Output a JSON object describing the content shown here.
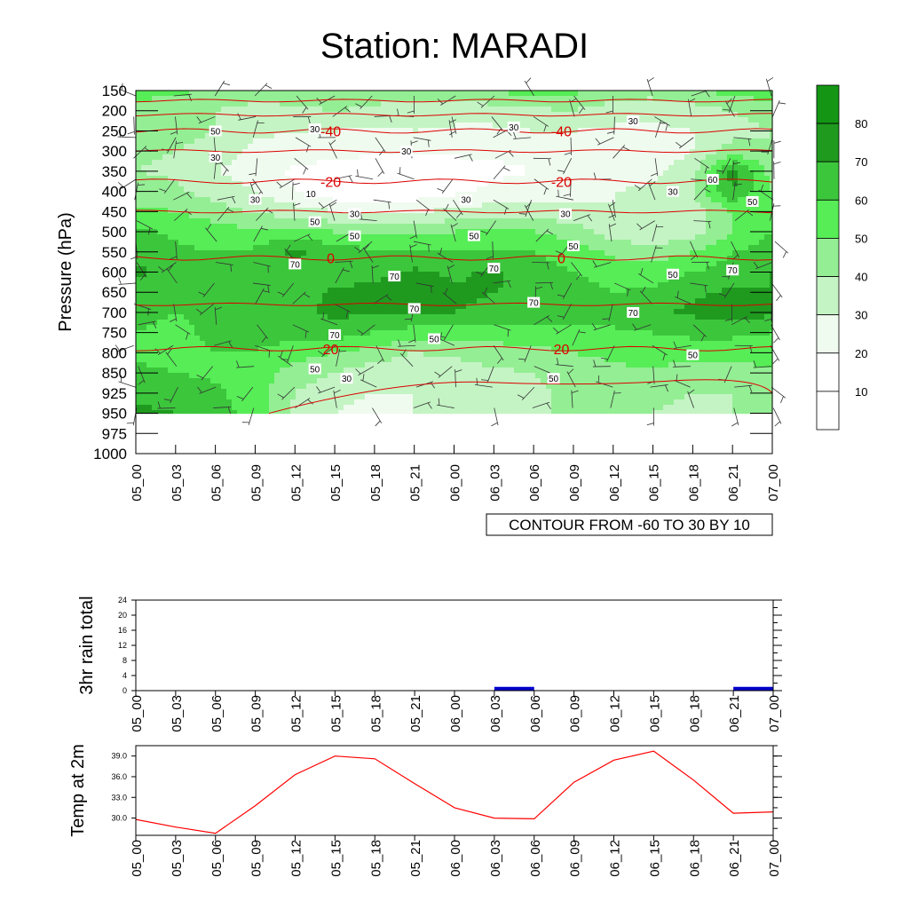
{
  "chart_data": [
    {
      "type": "heatmap",
      "title": "Station: MARADI",
      "ylabel": "Pressure (hPa)",
      "x_ticks": [
        "05_00",
        "05_03",
        "05_06",
        "05_09",
        "05_12",
        "05_15",
        "05_18",
        "05_21",
        "06_00",
        "06_03",
        "06_06",
        "06_09",
        "06_12",
        "06_15",
        "06_18",
        "06_21",
        "07_00"
      ],
      "y_ticks": [
        150,
        200,
        250,
        300,
        350,
        400,
        450,
        500,
        550,
        600,
        650,
        700,
        750,
        800,
        850,
        925,
        950,
        975,
        1000
      ],
      "contour_note": "CONTOUR FROM -60 TO 30 BY 10",
      "colorbar": {
        "levels": [
          10,
          20,
          30,
          40,
          50,
          60,
          70,
          80
        ],
        "tick_labels": [
          "10",
          "20",
          "30",
          "40",
          "50",
          "60",
          "70",
          "80"
        ],
        "colors": [
          "#ffffff",
          "#ffffff",
          "#f0fbef",
          "#c4f4c4",
          "#94ee94",
          "#56ed56",
          "#3cc63c",
          "#1f9a1f",
          "#149614"
        ]
      },
      "relative_humidity_grid": {
        "columns": [
          "05_00",
          "05_03",
          "05_06",
          "05_09",
          "05_12",
          "05_15",
          "05_18",
          "05_21",
          "06_00",
          "06_03",
          "06_06",
          "06_09",
          "06_12",
          "06_15",
          "06_18",
          "06_21",
          "07_00"
        ],
        "rows": [
          150,
          200,
          250,
          300,
          350,
          400,
          450,
          500,
          550,
          600,
          650,
          700,
          750,
          800,
          850,
          925,
          950
        ],
        "values": [
          [
            55,
            52,
            50,
            48,
            45,
            50,
            45,
            45,
            48,
            50,
            55,
            52,
            45,
            45,
            48,
            55,
            55
          ],
          [
            45,
            42,
            40,
            35,
            38,
            40,
            38,
            35,
            35,
            35,
            38,
            40,
            35,
            32,
            35,
            40,
            45
          ],
          [
            50,
            45,
            40,
            32,
            30,
            30,
            28,
            30,
            28,
            28,
            30,
            30,
            28,
            28,
            30,
            35,
            40
          ],
          [
            42,
            40,
            35,
            28,
            25,
            25,
            22,
            22,
            22,
            22,
            22,
            25,
            25,
            25,
            30,
            45,
            40
          ],
          [
            40,
            38,
            30,
            25,
            18,
            15,
            12,
            12,
            15,
            18,
            20,
            22,
            25,
            28,
            35,
            75,
            45
          ],
          [
            45,
            42,
            35,
            30,
            20,
            12,
            10,
            12,
            18,
            22,
            25,
            28,
            30,
            32,
            40,
            70,
            50
          ],
          [
            52,
            50,
            45,
            38,
            35,
            30,
            28,
            30,
            32,
            35,
            35,
            32,
            30,
            30,
            35,
            50,
            55
          ],
          [
            62,
            58,
            55,
            52,
            55,
            50,
            48,
            48,
            50,
            52,
            50,
            45,
            35,
            30,
            35,
            50,
            60
          ],
          [
            65,
            62,
            60,
            62,
            72,
            65,
            62,
            60,
            60,
            62,
            60,
            55,
            48,
            45,
            50,
            60,
            65
          ],
          [
            72,
            68,
            65,
            65,
            68,
            65,
            68,
            72,
            68,
            72,
            65,
            60,
            55,
            55,
            60,
            65,
            70
          ],
          [
            65,
            62,
            62,
            62,
            65,
            72,
            72,
            75,
            72,
            70,
            68,
            65,
            60,
            62,
            68,
            72,
            70
          ],
          [
            62,
            60,
            62,
            62,
            68,
            72,
            72,
            72,
            70,
            68,
            65,
            65,
            65,
            68,
            72,
            75,
            72
          ],
          [
            60,
            58,
            62,
            62,
            65,
            65,
            60,
            55,
            55,
            55,
            55,
            55,
            58,
            60,
            62,
            62,
            60
          ],
          [
            58,
            58,
            60,
            60,
            55,
            50,
            45,
            40,
            42,
            45,
            48,
            50,
            52,
            55,
            55,
            55,
            55
          ],
          [
            62,
            60,
            58,
            55,
            45,
            40,
            35,
            32,
            35,
            38,
            40,
            45,
            48,
            48,
            45,
            45,
            48
          ],
          [
            68,
            65,
            62,
            55,
            40,
            32,
            30,
            30,
            32,
            35,
            38,
            42,
            45,
            42,
            40,
            40,
            42
          ],
          [
            72,
            70,
            65,
            55,
            38,
            30,
            28,
            30,
            32,
            35,
            38,
            42,
            42,
            40,
            38,
            40,
            42
          ]
        ]
      },
      "temperature_contours": [
        {
          "level": -40,
          "label": "-40",
          "pressure": 250
        },
        {
          "level": -20,
          "label": "-20",
          "pressure": 375
        },
        {
          "level": 0,
          "label": "0",
          "pressure": 565
        },
        {
          "level": 20,
          "label": "20",
          "pressure": 790
        }
      ],
      "extra_contours": [
        {
          "pressure": 175,
          "label": ""
        },
        {
          "pressure": 210,
          "label": ""
        },
        {
          "pressure": 300,
          "label": ""
        },
        {
          "pressure": 450,
          "label": ""
        },
        {
          "pressure": 680,
          "label": ""
        }
      ],
      "rh_labels": [
        {
          "text": "50",
          "col": 2,
          "p": 250
        },
        {
          "text": "30",
          "col": 4.5,
          "p": 245
        },
        {
          "text": "30",
          "col": 9.5,
          "p": 240
        },
        {
          "text": "30",
          "col": 12.5,
          "p": 225
        },
        {
          "text": "30",
          "col": 2,
          "p": 315
        },
        {
          "text": "30",
          "col": 6.8,
          "p": 300
        },
        {
          "text": "10",
          "col": 4.4,
          "p": 405
        },
        {
          "text": "30",
          "col": 3,
          "p": 420
        },
        {
          "text": "30",
          "col": 8.3,
          "p": 420
        },
        {
          "text": "30",
          "col": 13.5,
          "p": 400
        },
        {
          "text": "60",
          "col": 14.5,
          "p": 370
        },
        {
          "text": "50",
          "col": 15.5,
          "p": 425
        },
        {
          "text": "50",
          "col": 4.5,
          "p": 475
        },
        {
          "text": "30",
          "col": 5.5,
          "p": 455
        },
        {
          "text": "30",
          "col": 10.8,
          "p": 455
        },
        {
          "text": "50",
          "col": 5.5,
          "p": 510
        },
        {
          "text": "50",
          "col": 8.5,
          "p": 510
        },
        {
          "text": "50",
          "col": 11,
          "p": 535
        },
        {
          "text": "70",
          "col": 4,
          "p": 580
        },
        {
          "text": "70",
          "col": 6.5,
          "p": 610
        },
        {
          "text": "70",
          "col": 9,
          "p": 590
        },
        {
          "text": "50",
          "col": 13.5,
          "p": 605
        },
        {
          "text": "70",
          "col": 15,
          "p": 595
        },
        {
          "text": "70",
          "col": 7,
          "p": 690
        },
        {
          "text": "70",
          "col": 10,
          "p": 675
        },
        {
          "text": "70",
          "col": 12.5,
          "p": 700
        },
        {
          "text": "70",
          "col": 5,
          "p": 755
        },
        {
          "text": "50",
          "col": 7.5,
          "p": 765
        },
        {
          "text": "50",
          "col": 14,
          "p": 805
        },
        {
          "text": "50",
          "col": 4.5,
          "p": 840
        },
        {
          "text": "30",
          "col": 5.3,
          "p": 870
        },
        {
          "text": "50",
          "col": 10.5,
          "p": 870
        }
      ]
    },
    {
      "type": "bar",
      "ylabel": "3hr rain total",
      "x": [
        "05_00",
        "05_03",
        "05_06",
        "05_09",
        "05_12",
        "05_15",
        "05_18",
        "05_21",
        "06_00",
        "06_03",
        "06_06",
        "06_09",
        "06_12",
        "06_15",
        "06_18",
        "06_21",
        "07_00"
      ],
      "values": [
        0,
        0,
        0,
        0,
        0,
        0,
        0,
        0.1,
        0,
        1,
        0,
        0,
        0,
        0,
        0,
        1,
        0.3
      ],
      "ylim": [
        0,
        24
      ],
      "y_ticks": [
        "0",
        "4",
        "8",
        "12",
        "16",
        "20",
        "24"
      ],
      "bar_color": "#0000cc"
    },
    {
      "type": "line",
      "ylabel": "Temp at 2m",
      "x": [
        "05_00",
        "05_03",
        "05_06",
        "05_09",
        "05_12",
        "05_15",
        "05_18",
        "05_21",
        "06_00",
        "06_03",
        "06_06",
        "06_09",
        "06_12",
        "06_15",
        "06_18",
        "06_21",
        "07_00"
      ],
      "values": [
        29.8,
        28.7,
        27.8,
        31.8,
        36.3,
        39.0,
        38.6,
        35.0,
        31.5,
        30.0,
        29.9,
        35.2,
        38.4,
        39.7,
        35.5,
        30.7,
        30.9
      ],
      "ylim": [
        27.5,
        40.5
      ],
      "y_ticks": [
        "30.0",
        "33.0",
        "36.0",
        "39.0"
      ],
      "y_tick_values": [
        30,
        33,
        36,
        39
      ],
      "line_color": "#ff0000"
    }
  ]
}
